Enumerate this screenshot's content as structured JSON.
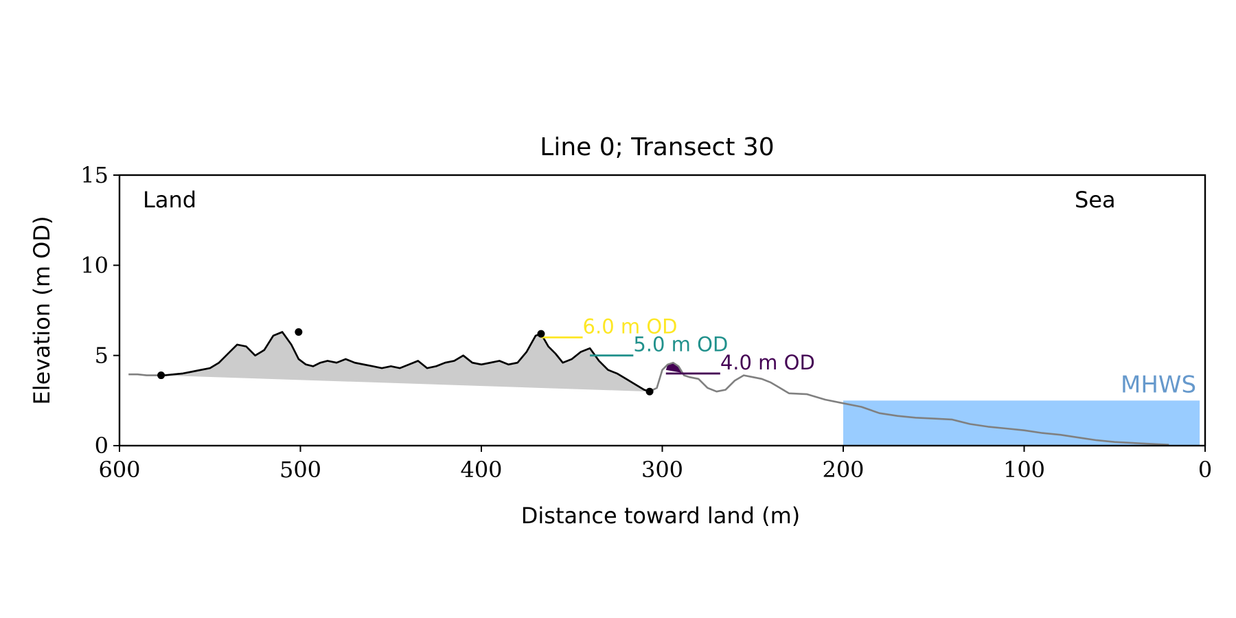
{
  "chart_data": {
    "type": "line",
    "title": "Line 0; Transect 30",
    "xlabel": "Distance toward land (m)",
    "ylabel": "Elevation (m OD)",
    "xlim": [
      600,
      0
    ],
    "ylim": [
      0,
      15
    ],
    "x_inverted": true,
    "xticks": [
      600,
      500,
      400,
      300,
      200,
      100,
      0
    ],
    "yticks": [
      0,
      5,
      10,
      15
    ],
    "grid": false,
    "corner_labels": {
      "left": "Land",
      "right": "Sea"
    },
    "colors": {
      "profile_land": "#000000",
      "profile_sea": "#808080",
      "dune_fill": "#cccccc",
      "mhws_fill": "#99ccff",
      "mhws_text": "#6699cc",
      "level_6": "#fde725",
      "level_5": "#21918c",
      "level_4": "#440154"
    },
    "profile": {
      "x": [
        595,
        590,
        585,
        580,
        575,
        570,
        565,
        560,
        555,
        550,
        545,
        540,
        535,
        530,
        525,
        520,
        515,
        510,
        505,
        501,
        497,
        493,
        489,
        485,
        480,
        475,
        470,
        465,
        460,
        455,
        450,
        445,
        440,
        435,
        430,
        425,
        420,
        415,
        410,
        405,
        400,
        395,
        390,
        385,
        380,
        375,
        370,
        367,
        363,
        359,
        355,
        350,
        345,
        340,
        335,
        330,
        325,
        320,
        315,
        310,
        307,
        303,
        300,
        297,
        294,
        291,
        288,
        285,
        280,
        275,
        270,
        265,
        260,
        255,
        250,
        245,
        240,
        235,
        230,
        220,
        210,
        200,
        190,
        180,
        170,
        160,
        150,
        140,
        130,
        120,
        110,
        100,
        90,
        80,
        70,
        60,
        50,
        40,
        30,
        20
      ],
      "y": [
        3.95,
        3.95,
        3.9,
        3.9,
        3.9,
        3.95,
        4.0,
        4.1,
        4.2,
        4.3,
        4.6,
        5.1,
        5.6,
        5.5,
        5.0,
        5.3,
        6.1,
        6.3,
        5.6,
        4.8,
        4.5,
        4.4,
        4.6,
        4.7,
        4.6,
        4.8,
        4.6,
        4.5,
        4.4,
        4.3,
        4.4,
        4.3,
        4.5,
        4.7,
        4.3,
        4.4,
        4.6,
        4.7,
        5.0,
        4.6,
        4.5,
        4.6,
        4.7,
        4.5,
        4.6,
        5.2,
        6.1,
        6.2,
        5.5,
        5.1,
        4.6,
        4.8,
        5.2,
        5.4,
        4.7,
        4.2,
        4.0,
        3.7,
        3.4,
        3.1,
        3.0,
        3.2,
        4.2,
        4.5,
        4.6,
        4.4,
        3.9,
        3.8,
        3.7,
        3.2,
        3.0,
        3.1,
        3.6,
        3.9,
        3.8,
        3.7,
        3.5,
        3.2,
        2.9,
        2.85,
        2.55,
        2.35,
        2.15,
        1.8,
        1.65,
        1.55,
        1.5,
        1.45,
        1.2,
        1.05,
        0.95,
        0.85,
        0.7,
        0.6,
        0.45,
        0.3,
        0.2,
        0.15,
        0.1,
        0.05
      ],
      "land_segment_x_range": [
        577,
        307
      ],
      "sea_segment_x_range": [
        307,
        20
      ]
    },
    "markers": [
      {
        "x": 577,
        "y": 3.9
      },
      {
        "x": 501,
        "y": 6.3
      },
      {
        "x": 367,
        "y": 6.2
      },
      {
        "x": 307,
        "y": 3.0
      }
    ],
    "dune_base": {
      "x": [
        577,
        307
      ],
      "y": [
        3.9,
        3.0
      ]
    },
    "levels": [
      {
        "label": "6.0 m OD",
        "value": 6.0,
        "x_start": 367,
        "x_end": 344,
        "color_key": "level_6"
      },
      {
        "label": "5.0 m OD",
        "value": 5.0,
        "x_start": 340,
        "x_end": 316,
        "color_key": "level_5"
      },
      {
        "label": "4.0 m OD",
        "value": 4.0,
        "x_start": 298,
        "x_end": 268,
        "color_key": "level_4"
      }
    ],
    "level4_patch": {
      "x": [
        298,
        297,
        294,
        291,
        289,
        287
      ],
      "y": [
        4.2,
        4.5,
        4.6,
        4.4,
        4.0,
        4.0
      ]
    },
    "mhws": {
      "label": "MHWS",
      "value": 2.5,
      "x_start": 200,
      "x_end": 3
    }
  }
}
